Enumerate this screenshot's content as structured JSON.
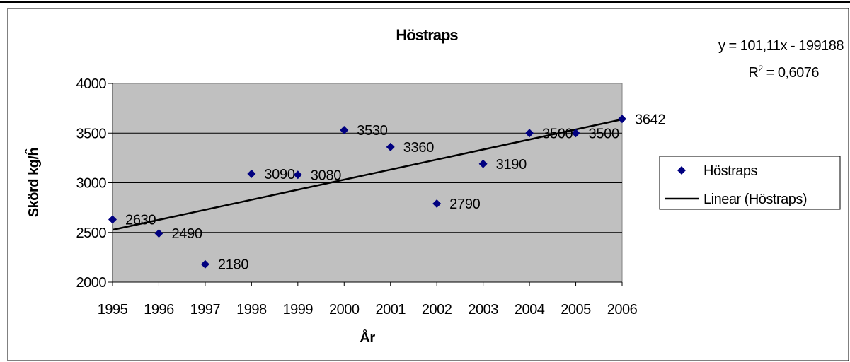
{
  "chart_data": {
    "type": "scatter",
    "title": "Höstraps",
    "xlabel": "År",
    "ylabel": "Skörd kg/ĥ",
    "x": [
      1995,
      1996,
      1997,
      1998,
      1999,
      2000,
      2001,
      2002,
      2003,
      2004,
      2005,
      2006
    ],
    "xticks": [
      "1995",
      "1996",
      "1997",
      "1998",
      "1999",
      "2000",
      "2001",
      "2002",
      "2003",
      "2004",
      "2005",
      "2006"
    ],
    "yticks": [
      "2000",
      "2500",
      "3000",
      "3500",
      "4000"
    ],
    "ylim": [
      2000,
      4000
    ],
    "grid": true,
    "legend_position": "right",
    "series": [
      {
        "name": "Höstraps",
        "values": [
          2630,
          2490,
          2180,
          3090,
          3080,
          3530,
          3360,
          2790,
          3190,
          3500,
          3500,
          3642
        ],
        "labels": [
          "2630",
          "2490",
          "2180",
          "3090",
          "3080",
          "3530",
          "3360",
          "2790",
          "3190",
          "3500",
          "3500",
          "3642"
        ],
        "color": "#000080"
      }
    ],
    "trendline": {
      "name": "Linear (Höstraps)",
      "type": "linear",
      "equation": "y = 101,11x - 199188",
      "r2_prefix": "R",
      "r2_exponent": "2",
      "r2_value": " = 0,6076",
      "color": "#000000"
    },
    "plot_background": "#c0c0c0"
  }
}
